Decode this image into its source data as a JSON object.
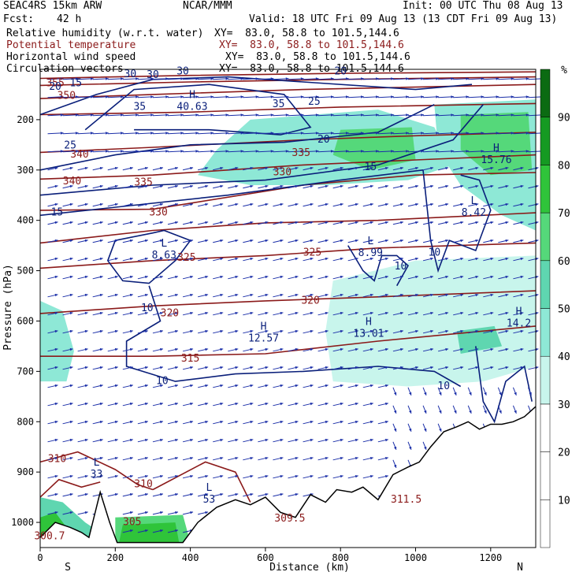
{
  "header": {
    "model": "SEAC4RS 15km ARW",
    "center": "NCAR/MMM",
    "init": "Init: 00 UTC Thu 08 Aug 13",
    "fcst_label": "Fcst:",
    "fcst_value": "42 h",
    "valid": "Valid: 18 UTC Fri 09 Aug 13 (13 CDT Fri 09 Aug 13)",
    "fields": [
      {
        "name": "Relative humidity (w.r.t. water)",
        "xy": "XY=  83.0, 58.8 to 101.5,144.6",
        "color": "#000000"
      },
      {
        "name": "Potential temperature",
        "xy": "XY=  83.0, 58.8 to 101.5,144.6",
        "color": "#8b1a1a"
      },
      {
        "name": "Horizontal wind speed",
        "xy": "XY=  83.0, 58.8 to 101.5,144.6",
        "color": "#000000"
      },
      {
        "name": "Circulation vectors",
        "xy": "XY=  83.0, 58.8 to 101.5,144.6",
        "color": "#000000"
      }
    ]
  },
  "chart_data": {
    "type": "cross-section",
    "xlabel": "Distance (km)",
    "ylabel": "Pressure (hPa)",
    "xlim": [
      0,
      1320
    ],
    "ylim": [
      1050,
      100
    ],
    "x_ticks": [
      0,
      200,
      400,
      600,
      800,
      1000,
      1200
    ],
    "y_ticks": [
      200,
      300,
      400,
      500,
      600,
      700,
      800,
      900,
      1000
    ],
    "left_end_label": "S",
    "right_end_label": "N",
    "colorbar": {
      "unit": "%",
      "ticks": [
        10,
        20,
        30,
        40,
        50,
        60,
        70,
        80,
        90
      ],
      "colors": [
        "#ffffff",
        "#ffffff",
        "#ffffff",
        "#c8f5ec",
        "#8ee8d6",
        "#5fd6b0",
        "#55d87a",
        "#2fc43a",
        "#159a22",
        "#0b6b12"
      ]
    },
    "theta_labels": [
      {
        "x": 40,
        "p": 128,
        "v": "355"
      },
      {
        "x": 70,
        "p": 153,
        "v": "350"
      },
      {
        "x": 105,
        "p": 270,
        "v": "340"
      },
      {
        "x": 85,
        "p": 323,
        "v": "340"
      },
      {
        "x": 275,
        "p": 325,
        "v": "335"
      },
      {
        "x": 695,
        "p": 267,
        "v": "335"
      },
      {
        "x": 645,
        "p": 305,
        "v": "330"
      },
      {
        "x": 315,
        "p": 385,
        "v": "330"
      },
      {
        "x": 725,
        "p": 465,
        "v": "325"
      },
      {
        "x": 390,
        "p": 475,
        "v": "325"
      },
      {
        "x": 720,
        "p": 560,
        "v": "320"
      },
      {
        "x": 345,
        "p": 585,
        "v": "320"
      },
      {
        "x": 400,
        "p": 675,
        "v": "315"
      },
      {
        "x": 45,
        "p": 875,
        "v": "310"
      },
      {
        "x": 275,
        "p": 925,
        "v": "310"
      },
      {
        "x": 245,
        "p": 1000,
        "v": "305"
      },
      {
        "x": 25,
        "p": 1028,
        "v": "300.7"
      },
      {
        "x": 665,
        "p": 993,
        "v": "309.5"
      },
      {
        "x": 975,
        "p": 955,
        "v": "311.5"
      }
    ],
    "wind_labels": [
      {
        "x": 40,
        "p": 135,
        "v": "20"
      },
      {
        "x": 95,
        "p": 128,
        "v": "15"
      },
      {
        "x": 240,
        "p": 110,
        "v": "30"
      },
      {
        "x": 300,
        "p": 112,
        "v": "30"
      },
      {
        "x": 380,
        "p": 105,
        "v": "30"
      },
      {
        "x": 265,
        "p": 175,
        "v": "35"
      },
      {
        "x": 635,
        "p": 170,
        "v": "35"
      },
      {
        "x": 730,
        "p": 165,
        "v": "25"
      },
      {
        "x": 800,
        "p": 105,
        "v": "20"
      },
      {
        "x": 80,
        "p": 252,
        "v": "25"
      },
      {
        "x": 755,
        "p": 240,
        "v": "20"
      },
      {
        "x": 880,
        "p": 295,
        "v": "15"
      },
      {
        "x": 45,
        "p": 385,
        "v": "15"
      },
      {
        "x": 285,
        "p": 575,
        "v": "10"
      },
      {
        "x": 325,
        "p": 720,
        "v": "10"
      },
      {
        "x": 960,
        "p": 492,
        "v": "10"
      },
      {
        "x": 1050,
        "p": 465,
        "v": "10"
      },
      {
        "x": 1075,
        "p": 730,
        "v": "10"
      }
    ],
    "extrema": [
      {
        "x": 405,
        "p": 170,
        "type": "H",
        "v": "40.63"
      },
      {
        "x": 1215,
        "p": 275,
        "type": "H",
        "v": "15.76"
      },
      {
        "x": 1155,
        "p": 380,
        "type": "L",
        "v": "8.42"
      },
      {
        "x": 330,
        "p": 465,
        "type": "L",
        "v": "8.63"
      },
      {
        "x": 880,
        "p": 460,
        "type": "L",
        "v": "8.99"
      },
      {
        "x": 595,
        "p": 630,
        "type": "H",
        "v": "12.57"
      },
      {
        "x": 875,
        "p": 620,
        "type": "H",
        "v": "13.01"
      },
      {
        "x": 1275,
        "p": 600,
        "type": "H",
        "v": "14.2"
      },
      {
        "x": 150,
        "p": 900,
        "type": "L",
        "v": "33"
      },
      {
        "x": 450,
        "p": 950,
        "type": "L",
        "v": "53"
      }
    ]
  }
}
